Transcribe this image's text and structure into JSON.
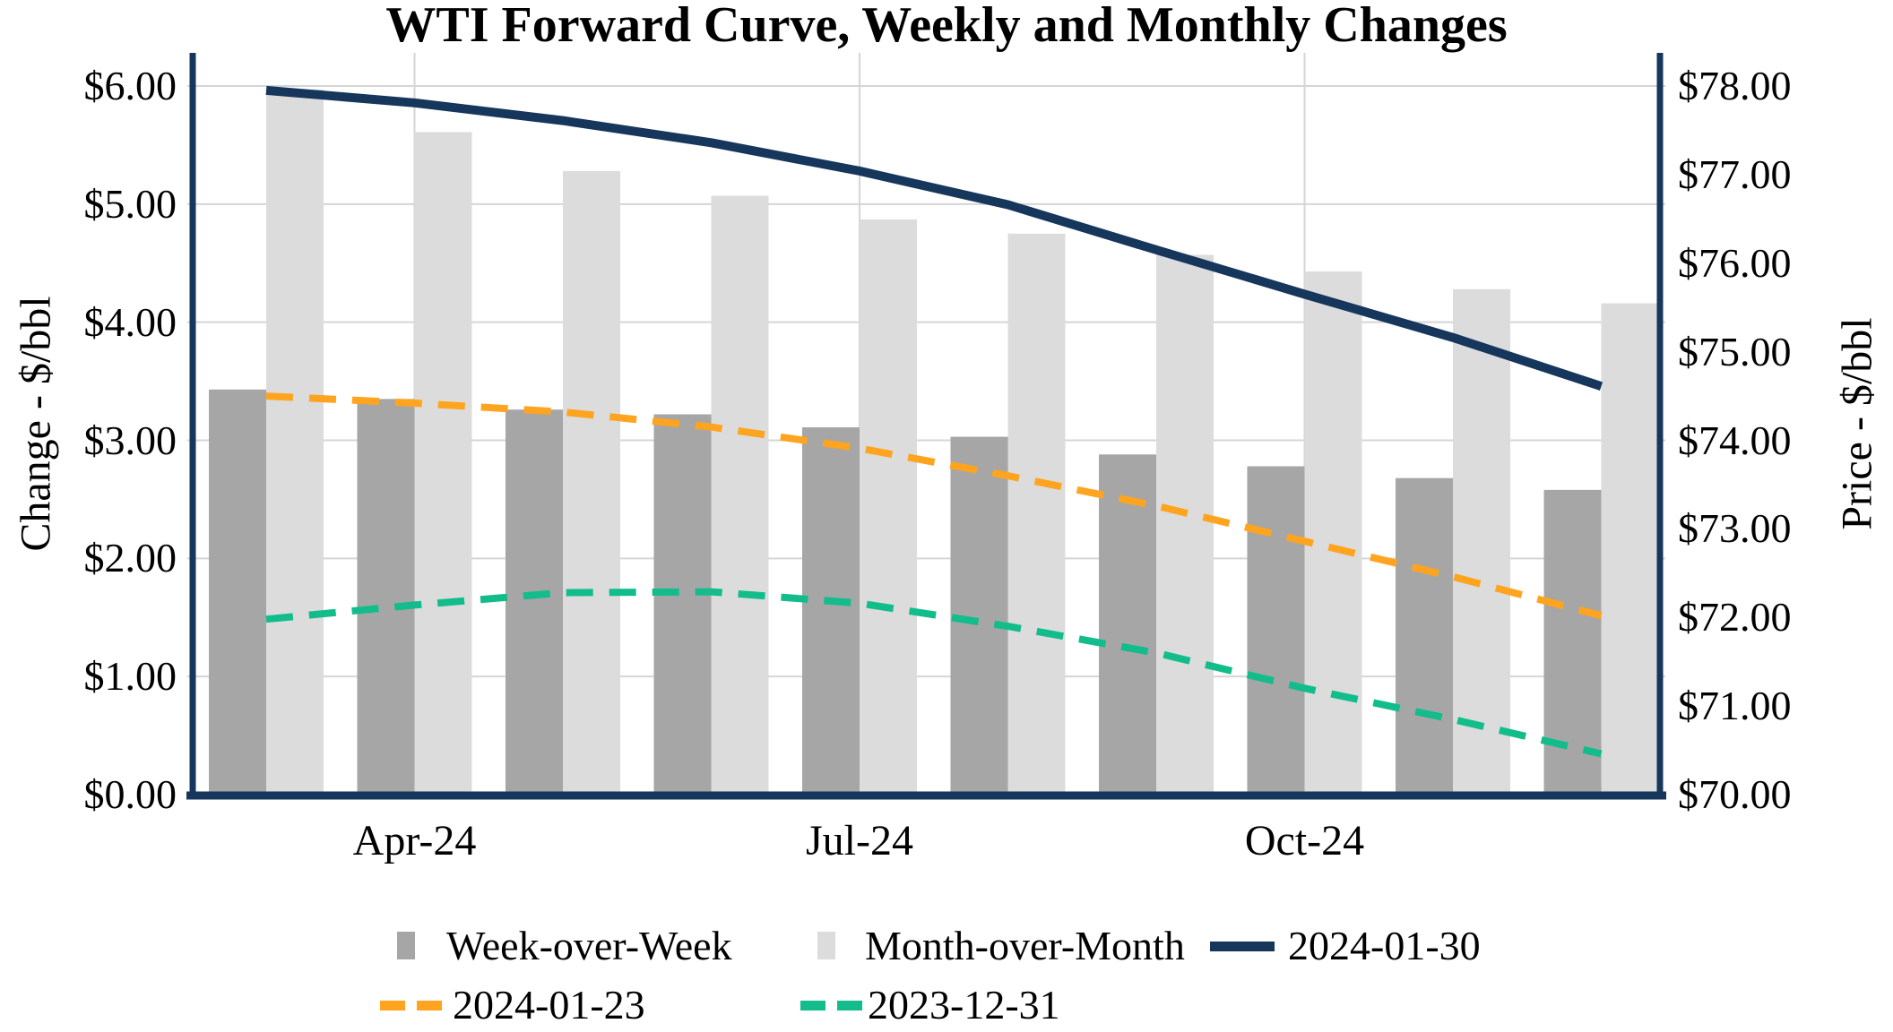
{
  "title": "WTI Forward Curve, Weekly and Monthly Changes",
  "left_axis": {
    "title": "Change - $/bbl",
    "tick_labels": [
      "$6.00",
      "$5.00",
      "$4.00",
      "$3.00",
      "$2.00",
      "$1.00",
      "$0.00"
    ]
  },
  "right_axis": {
    "title": "Price - $/bbl",
    "tick_labels": [
      "$78.00",
      "$77.00",
      "$76.00",
      "$75.00",
      "$74.00",
      "$73.00",
      "$72.00",
      "$71.00",
      "$70.00"
    ]
  },
  "x_axis": {
    "tick_labels": [
      "Apr-24",
      "Jul-24",
      "Oct-24"
    ]
  },
  "colors": {
    "axis_line": "#16365C",
    "gridline": "#D5D5D5",
    "week_over_week_bar": "#A6A6A6",
    "month_over_month_bar": "#DCDCDC",
    "line_2024_01_30": "#16365C",
    "line_2024_01_23": "#FFA41E",
    "line_2023_12_31": "#12BD8B"
  },
  "chart_data": {
    "type": "bar",
    "subtype": "combo-bar-line-dual-axis",
    "title": "WTI Forward Curve, Weekly and Monthly Changes",
    "n_categories": 10,
    "x_tick_positions": [
      1,
      4,
      7
    ],
    "x_tick_labels": [
      "Apr-24",
      "Jul-24",
      "Oct-24"
    ],
    "axes": {
      "left": {
        "label": "Change - $/bbl",
        "range": [
          0,
          6
        ],
        "tick_step": 1.0,
        "grid": true
      },
      "right": {
        "label": "Price - $/bbl",
        "range": [
          70,
          78
        ],
        "tick_step": 1.0,
        "grid": false
      }
    },
    "legend_position": "bottom",
    "series": [
      {
        "name": "Week-over-Week",
        "type": "bar",
        "axis": "left",
        "color": "#A6A6A6",
        "values": [
          3.43,
          3.35,
          3.26,
          3.22,
          3.11,
          3.03,
          2.88,
          2.78,
          2.68,
          2.58
        ]
      },
      {
        "name": "Month-over-Month",
        "type": "bar",
        "axis": "left",
        "color": "#DCDCDC",
        "values": [
          5.97,
          5.61,
          5.28,
          5.07,
          4.87,
          4.75,
          4.57,
          4.43,
          4.28,
          4.16
        ]
      },
      {
        "name": "2024-01-30",
        "type": "line",
        "dash": "solid",
        "axis": "right",
        "color": "#16365C",
        "values": [
          77.95,
          77.81,
          77.61,
          77.36,
          77.04,
          76.66,
          76.15,
          75.65,
          75.16,
          74.61
        ]
      },
      {
        "name": "2024-01-23",
        "type": "line",
        "dash": "dashed",
        "axis": "right",
        "color": "#FFA41E",
        "values": [
          74.5,
          74.42,
          74.32,
          74.15,
          73.91,
          73.6,
          73.26,
          72.86,
          72.46,
          72.02
        ]
      },
      {
        "name": "2023-12-31",
        "type": "line",
        "dash": "dashed",
        "axis": "right",
        "color": "#12BD8B",
        "values": [
          71.98,
          72.14,
          72.28,
          72.29,
          72.16,
          71.9,
          71.6,
          71.2,
          70.85,
          70.46
        ]
      }
    ],
    "legend_rows": [
      [
        "Week-over-Week",
        "Month-over-Month",
        "2024-01-30"
      ],
      [
        "2024-01-23",
        "2023-12-31"
      ]
    ]
  }
}
